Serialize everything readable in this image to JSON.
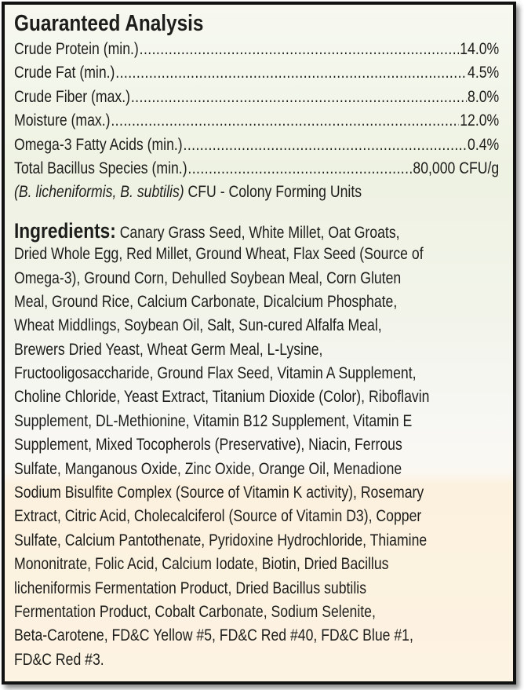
{
  "analysis": {
    "title": "Guaranteed Analysis",
    "rows": [
      {
        "label": "Crude Protein (min.)",
        "value": "14.0%"
      },
      {
        "label": "Crude Fat (min.)",
        "value": "4.5%"
      },
      {
        "label": "Crude Fiber (max.)",
        "value": "8.0%"
      },
      {
        "label": "Moisture (max.)",
        "value": "12.0%"
      },
      {
        "label": "Omega-3 Fatty Acids (min.)",
        "value": "0.4%"
      },
      {
        "label": "Total Bacillus Species (min.)",
        "value": "80,000 CFU/g"
      }
    ],
    "note_italic": "(B. licheniformis, B. subtilis)",
    "note_text": " CFU - Colony Forming Units"
  },
  "ingredients": {
    "label": "Ingredients:",
    "lines": [
      " Canary Grass Seed, White Millet, Oat Groats,",
      "Dried Whole Egg, Red Millet, Ground Wheat, Flax Seed (Source of",
      "Omega-3), Ground Corn, Dehulled Soybean Meal, Corn Gluten",
      "Meal, Ground Rice, Calcium Carbonate, Dicalcium Phosphate,",
      "Wheat Middlings, Soybean Oil, Salt, Sun-cured Alfalfa Meal,",
      "Brewers Dried Yeast, Wheat Germ Meal, L-Lysine,",
      "Fructooligosaccharide, Ground Flax Seed, Vitamin A Supplement,",
      "Choline Chloride, Yeast Extract, Titanium Dioxide (Color), Riboflavin",
      "Supplement, DL-Methionine, Vitamin B12 Supplement, Vitamin E",
      "Supplement, Mixed Tocopherols (Preservative), Niacin, Ferrous",
      "Sulfate, Manganous Oxide, Zinc Oxide, Orange Oil, Menadione",
      "Sodium Bisulfite Complex (Source of Vitamin K activity), Rosemary",
      "Extract, Citric Acid, Cholecalciferol (Source of Vitamin D3), Copper",
      "Sulfate, Calcium Pantothenate, Pyridoxine Hydrochloride, Thiamine",
      "Mononitrate, Folic Acid, Calcium Iodate, Biotin, Dried Bacillus",
      "licheniformis Fermentation Product, Dried Bacillus subtilis",
      "Fermentation Product, Cobalt Carbonate, Sodium Selenite,",
      "Beta-Carotene, FD&C Yellow #5, FD&C Red #40, FD&C Blue #1,",
      "FD&C Red #3."
    ]
  }
}
